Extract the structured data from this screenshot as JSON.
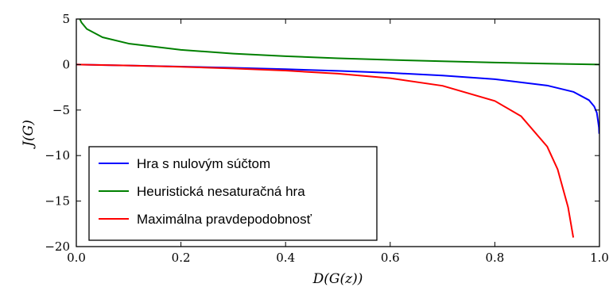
{
  "chart_data": {
    "type": "line",
    "xlabel": "D(G(z))",
    "ylabel": "J(G)",
    "xlim": [
      0.0,
      1.0
    ],
    "ylim": [
      -20,
      5
    ],
    "x_ticks": [
      "0.0",
      "0.2",
      "0.4",
      "0.6",
      "0.8",
      "1.0"
    ],
    "y_ticks": [
      "5",
      "0",
      "−5",
      "−10",
      "−15",
      "−20"
    ],
    "grid": false,
    "legend_position": "lower-left",
    "series": [
      {
        "name": "Hra s nulovým súčtom",
        "color": "#0000ff",
        "x": [
          0.0,
          0.1,
          0.2,
          0.3,
          0.4,
          0.5,
          0.6,
          0.7,
          0.8,
          0.9,
          0.95,
          0.98,
          0.99,
          0.995,
          0.999,
          0.9995
        ],
        "y": [
          0.0,
          -0.105,
          -0.223,
          -0.357,
          -0.511,
          -0.693,
          -0.916,
          -1.204,
          -1.609,
          -2.303,
          -2.996,
          -3.912,
          -4.605,
          -5.298,
          -6.908,
          -7.601
        ]
      },
      {
        "name": "Heuristická nesaturačná hra",
        "color": "#008000",
        "x": [
          0.0067,
          0.01,
          0.02,
          0.05,
          0.1,
          0.2,
          0.3,
          0.4,
          0.5,
          0.6,
          0.7,
          0.8,
          0.9,
          1.0
        ],
        "y": [
          5.0,
          4.605,
          3.912,
          2.996,
          2.303,
          1.609,
          1.204,
          0.916,
          0.693,
          0.511,
          0.357,
          0.223,
          0.105,
          0.0
        ]
      },
      {
        "name": "Maximálna pravdepodobnosť",
        "color": "#ff0000",
        "x": [
          0.0,
          0.1,
          0.2,
          0.3,
          0.4,
          0.5,
          0.6,
          0.7,
          0.8,
          0.85,
          0.9,
          0.92,
          0.94,
          0.95
        ],
        "y": [
          0.0,
          -0.111,
          -0.25,
          -0.429,
          -0.667,
          -1.0,
          -1.5,
          -2.333,
          -4.0,
          -5.667,
          -9.0,
          -11.5,
          -15.667,
          -19.0
        ]
      }
    ]
  }
}
